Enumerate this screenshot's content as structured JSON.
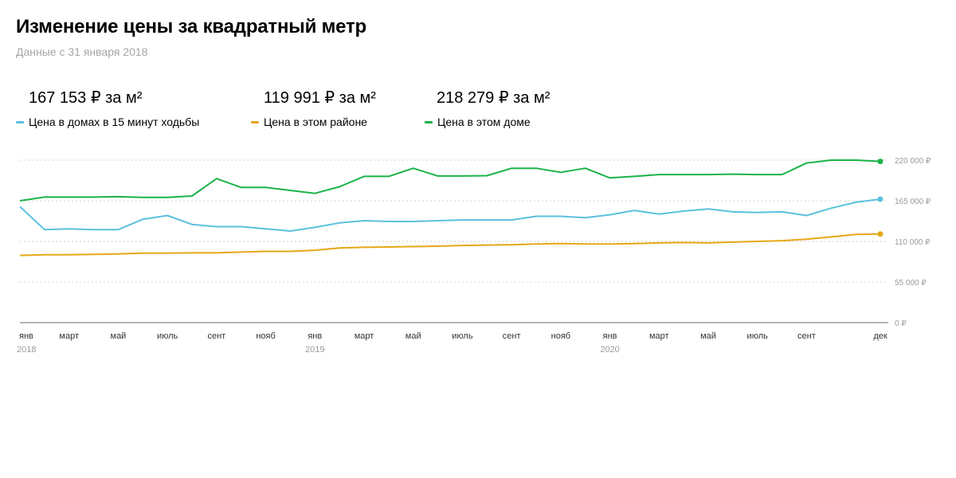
{
  "header": {
    "title": "Изменение цены за квадратный метр",
    "subtitle": "Данные с 31 января 2018"
  },
  "stats": [
    {
      "value": "167 153 ₽ за м²",
      "label": "Цена в домах в 15 минут ходьбы",
      "color": "#5bc0de"
    },
    {
      "value": "119 991 ₽ за м²",
      "label": "Цена в этом районе",
      "color": "#e6a817"
    },
    {
      "value": "218 279 ₽ за м²",
      "label": "Цена в этом доме",
      "color": "#1bb34a"
    }
  ],
  "chart_data": {
    "type": "line",
    "ylim": [
      0,
      220000
    ],
    "y_ticks": [
      0,
      55000,
      110000,
      165000,
      220000
    ],
    "y_tick_labels": [
      "0 ₽",
      "55 000 ₽",
      "110 000 ₽",
      "165 000 ₽",
      "220 000 ₽"
    ],
    "grid": true,
    "x": [
      "янв 2018",
      "фев 2018",
      "март 2018",
      "апр 2018",
      "май 2018",
      "июнь 2018",
      "июль 2018",
      "авг 2018",
      "сент 2018",
      "окт 2018",
      "нояб 2018",
      "дек 2018",
      "янв 2019",
      "фев 2019",
      "март 2019",
      "апр 2019",
      "май 2019",
      "июнь 2019",
      "июль 2019",
      "авг 2019",
      "сент 2019",
      "окт 2019",
      "нояб 2019",
      "дек 2019",
      "янв 2020",
      "фев 2020",
      "март 2020",
      "апр 2020",
      "май 2020",
      "июнь 2020",
      "июль 2020",
      "авг 2020",
      "сент 2020",
      "окт 2020",
      "нояб 2020",
      "дек 2020"
    ],
    "x_tick_labels": [
      {
        "index": 0,
        "label": "янв",
        "year": "2018"
      },
      {
        "index": 2,
        "label": "март"
      },
      {
        "index": 4,
        "label": "май"
      },
      {
        "index": 6,
        "label": "июль"
      },
      {
        "index": 8,
        "label": "сент"
      },
      {
        "index": 10,
        "label": "нояб"
      },
      {
        "index": 12,
        "label": "янв",
        "year": "2019"
      },
      {
        "index": 14,
        "label": "март"
      },
      {
        "index": 16,
        "label": "май"
      },
      {
        "index": 18,
        "label": "июль"
      },
      {
        "index": 20,
        "label": "сент"
      },
      {
        "index": 22,
        "label": "нояб"
      },
      {
        "index": 24,
        "label": "янв",
        "year": "2020"
      },
      {
        "index": 26,
        "label": "март"
      },
      {
        "index": 28,
        "label": "май"
      },
      {
        "index": 30,
        "label": "июль"
      },
      {
        "index": 32,
        "label": "сент"
      },
      {
        "index": 35,
        "label": "дек"
      }
    ],
    "series": [
      {
        "name": "Цена в домах в 15 минут ходьбы",
        "color": "#5bc0de",
        "values": [
          157000,
          126000,
          127000,
          126000,
          126000,
          140000,
          145000,
          133000,
          130000,
          130000,
          127000,
          124000,
          129000,
          135000,
          138000,
          137000,
          137000,
          138000,
          139000,
          139000,
          139000,
          144000,
          144000,
          142000,
          146000,
          152000,
          147000,
          151000,
          154000,
          150000,
          149000,
          150000,
          145000,
          155000,
          163000,
          167153
        ]
      },
      {
        "name": "Цена в этом районе",
        "color": "#e6a817",
        "values": [
          91000,
          92000,
          92000,
          92500,
          93000,
          94000,
          94000,
          94500,
          94500,
          95500,
          96500,
          96500,
          98000,
          101000,
          102000,
          102500,
          103000,
          103500,
          104500,
          105000,
          105500,
          106500,
          107000,
          106500,
          106500,
          107000,
          108000,
          108500,
          108000,
          109000,
          110000,
          111000,
          113000,
          116000,
          119500,
          119991
        ]
      },
      {
        "name": "Цена в этом доме",
        "color": "#1bb34a",
        "values": [
          165000,
          170000,
          170000,
          170000,
          170500,
          169500,
          169500,
          171500,
          195000,
          183000,
          183000,
          179000,
          175000,
          184000,
          198000,
          198000,
          209000,
          198500,
          198500,
          199000,
          209000,
          209000,
          203500,
          209000,
          196000,
          198000,
          200500,
          200500,
          200500,
          201000,
          200500,
          200500,
          216000,
          220000,
          220000,
          218279
        ]
      }
    ]
  }
}
